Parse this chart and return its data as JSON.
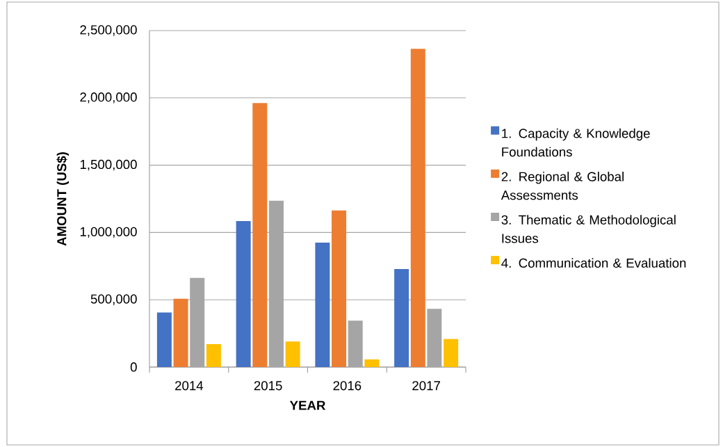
{
  "chart_data": {
    "type": "bar",
    "xlabel": "YEAR",
    "ylabel": "AMOUNT (US$)",
    "categories": [
      "2014",
      "2015",
      "2016",
      "2017"
    ],
    "series": [
      {
        "name": "1. Capacity & Knowledge Foundations",
        "color": "#4472c4",
        "values": [
          405000,
          1085000,
          925000,
          728000
        ]
      },
      {
        "name": "2. Regional & Global Assessments",
        "color": "#ed7d31",
        "values": [
          507000,
          1961000,
          1164000,
          2364000
        ]
      },
      {
        "name": "3. Thematic & Methodological Issues",
        "color": "#a5a5a5",
        "values": [
          663000,
          1236000,
          345000,
          433000
        ]
      },
      {
        "name": "4. Communication & Evaluation",
        "color": "#ffc000",
        "values": [
          170000,
          190000,
          57000,
          209000
        ]
      }
    ],
    "ylim": [
      0,
      2500000
    ],
    "yticks": [
      {
        "value": 0,
        "label": "0"
      },
      {
        "value": 500000,
        "label": "500,000"
      },
      {
        "value": 1000000,
        "label": "1,000,000"
      },
      {
        "value": 1500000,
        "label": "1,500,000"
      },
      {
        "value": 2000000,
        "label": "2,000,000"
      },
      {
        "value": 2500000,
        "label": "2,500,000"
      }
    ],
    "grid": "y",
    "legend": "right"
  }
}
